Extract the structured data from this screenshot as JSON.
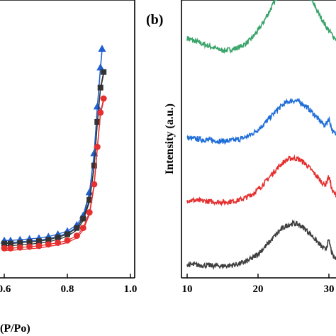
{
  "chart_data": [
    {
      "panel": "a",
      "type": "line",
      "title": "",
      "xlabel": "(P/Po)",
      "ylabel": "",
      "xlim": [
        0.6,
        1.0
      ],
      "xticks": [
        "0.6",
        "0.8",
        "1.0"
      ],
      "grid": false,
      "series": [
        {
          "color": "#1f5fd0",
          "marker": "triangle",
          "x": [
            0.6,
            0.62,
            0.65,
            0.68,
            0.71,
            0.74,
            0.77,
            0.8,
            0.83,
            0.85,
            0.87,
            0.885,
            0.895,
            0.905,
            0.91
          ],
          "y": [
            14,
            14,
            14.5,
            15,
            15.5,
            16.5,
            18,
            20,
            24,
            30,
            45,
            70,
            100,
            125,
            137
          ]
        },
        {
          "color": "#333333",
          "marker": "square",
          "x": [
            0.6,
            0.62,
            0.65,
            0.68,
            0.71,
            0.74,
            0.77,
            0.8,
            0.83,
            0.85,
            0.87,
            0.885,
            0.895,
            0.905,
            0.915
          ],
          "y": [
            12,
            12,
            12.5,
            13,
            13.5,
            14.5,
            16,
            18,
            22,
            28,
            40,
            62,
            90,
            112,
            122
          ]
        },
        {
          "color": "#e53030",
          "marker": "circle",
          "x": [
            0.6,
            0.62,
            0.65,
            0.68,
            0.71,
            0.74,
            0.77,
            0.8,
            0.83,
            0.85,
            0.87,
            0.885,
            0.895,
            0.905,
            0.915
          ],
          "y": [
            9,
            9,
            9.5,
            10,
            10.5,
            11.5,
            12.5,
            14,
            17,
            22,
            32,
            50,
            74,
            96,
            105
          ]
        }
      ]
    },
    {
      "panel": "b",
      "type": "line",
      "title": "",
      "xlabel": "",
      "ylabel": "Intensity (a.u.)",
      "xlim": [
        10,
        35
      ],
      "xticks": [
        "10",
        "20",
        "30"
      ],
      "grid": false,
      "series": [
        {
          "color": "#3aa46a",
          "offset": 3,
          "peak": 25,
          "peak_height": 0.82,
          "base_low": 0.15,
          "base_high": 0.05,
          "side_peak": 0
        },
        {
          "color": "#1f6ed8",
          "offset": 2,
          "peak": 25,
          "peak_height": 0.48,
          "base_low": 0.04,
          "base_high": 0.02,
          "side_peak": 0.12
        },
        {
          "color": "#e53030",
          "offset": 1,
          "peak": 25,
          "peak_height": 0.52,
          "base_low": 0.03,
          "base_high": 0.02,
          "side_peak": 0.14
        },
        {
          "color": "#404040",
          "offset": 0,
          "peak": 25,
          "peak_height": 0.5,
          "base_low": 0.02,
          "base_high": 0.02,
          "side_peak": 0.14
        }
      ]
    }
  ],
  "labels": {
    "panel_b_tag": "(b)",
    "panel_a_xlabel": "(P/Po)",
    "panel_b_ylabel": "Intensity (a.u.)"
  }
}
